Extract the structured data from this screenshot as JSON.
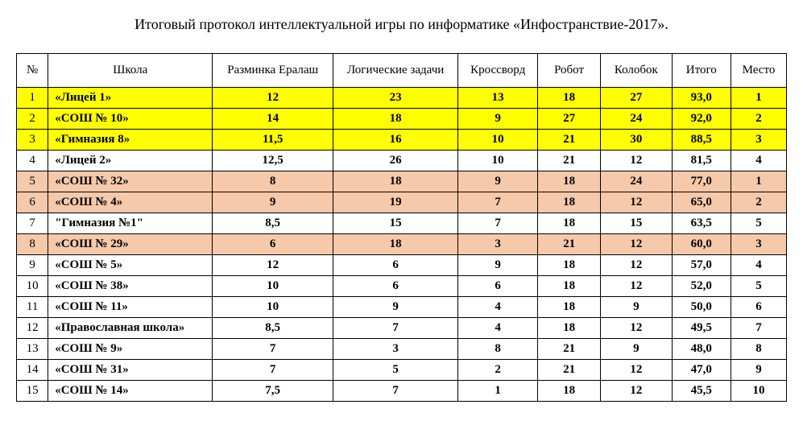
{
  "title": "Итоговый протокол интеллектуальной игры по информатике «Инфостранствие-2017».",
  "colors": {
    "yellow": "#ffff00",
    "peach": "#f6c9ab",
    "white": "#ffffff"
  },
  "columns": [
    "№",
    "Школа",
    "Разминка Ералаш",
    "Логические задачи",
    "Кроссворд",
    "Робот",
    "Колобок",
    "Итого",
    "Место"
  ],
  "rows": [
    {
      "n": "1",
      "school": "«Лицей 1»",
      "warmup": "12",
      "logic": "23",
      "cross": "13",
      "robot": "18",
      "kolobok": "27",
      "total": "93,0",
      "place": "1",
      "bg": "#ffff00"
    },
    {
      "n": "2",
      "school": "«СОШ № 10»",
      "warmup": "14",
      "logic": "18",
      "cross": "9",
      "robot": "27",
      "kolobok": "24",
      "total": "92,0",
      "place": "2",
      "bg": "#ffff00"
    },
    {
      "n": "3",
      "school": "«Гимназия 8»",
      "warmup": "11,5",
      "logic": "16",
      "cross": "10",
      "robot": "21",
      "kolobok": "30",
      "total": "88,5",
      "place": "3",
      "bg": "#ffff00"
    },
    {
      "n": "4",
      "school": "«Лицей 2»",
      "warmup": "12,5",
      "logic": "26",
      "cross": "10",
      "robot": "21",
      "kolobok": "12",
      "total": "81,5",
      "place": "4",
      "bg": "#ffffff"
    },
    {
      "n": "5",
      "school": "«СОШ № 32»",
      "warmup": "8",
      "logic": "18",
      "cross": "9",
      "robot": "18",
      "kolobok": "24",
      "total": "77,0",
      "place": "1",
      "bg": "#f6c9ab"
    },
    {
      "n": "6",
      "school": "«СОШ № 4»",
      "warmup": "9",
      "logic": "19",
      "cross": "7",
      "robot": "18",
      "kolobok": "12",
      "total": "65,0",
      "place": "2",
      "bg": "#f6c9ab"
    },
    {
      "n": "7",
      "school": "\"Гимназия №1\"",
      "warmup": "8,5",
      "logic": "15",
      "cross": "7",
      "robot": "18",
      "kolobok": "15",
      "total": "63,5",
      "place": "5",
      "bg": "#ffffff"
    },
    {
      "n": "8",
      "school": "«СОШ № 29»",
      "warmup": "6",
      "logic": "18",
      "cross": "3",
      "robot": "21",
      "kolobok": "12",
      "total": "60,0",
      "place": "3",
      "bg": "#f6c9ab"
    },
    {
      "n": "9",
      "school": "«СОШ № 5»",
      "warmup": "12",
      "logic": "6",
      "cross": "9",
      "robot": "18",
      "kolobok": "12",
      "total": "57,0",
      "place": "4",
      "bg": "#ffffff"
    },
    {
      "n": "10",
      "school": "«СОШ № 38»",
      "warmup": "10",
      "logic": "6",
      "cross": "6",
      "robot": "18",
      "kolobok": "12",
      "total": "52,0",
      "place": "5",
      "bg": "#ffffff"
    },
    {
      "n": "11",
      "school": "«СОШ № 11»",
      "warmup": "10",
      "logic": "9",
      "cross": "4",
      "robot": "18",
      "kolobok": "9",
      "total": "50,0",
      "place": "6",
      "bg": "#ffffff"
    },
    {
      "n": "12",
      "school": "«Православная школа»",
      "warmup": "8,5",
      "logic": "7",
      "cross": "4",
      "robot": "18",
      "kolobok": "12",
      "total": "49,5",
      "place": "7",
      "bg": "#ffffff"
    },
    {
      "n": "13",
      "school": "«СОШ № 9»",
      "warmup": "7",
      "logic": "3",
      "cross": "8",
      "robot": "21",
      "kolobok": "9",
      "total": "48,0",
      "place": "8",
      "bg": "#ffffff"
    },
    {
      "n": "14",
      "school": "«СОШ № 31»",
      "warmup": "7",
      "logic": "5",
      "cross": "2",
      "robot": "21",
      "kolobok": "12",
      "total": "47,0",
      "place": "9",
      "bg": "#ffffff"
    },
    {
      "n": "15",
      "school": "«СОШ № 14»",
      "warmup": "7,5",
      "logic": "7",
      "cross": "1",
      "robot": "18",
      "kolobok": "12",
      "total": "45,5",
      "place": "10",
      "bg": "#ffffff"
    }
  ]
}
